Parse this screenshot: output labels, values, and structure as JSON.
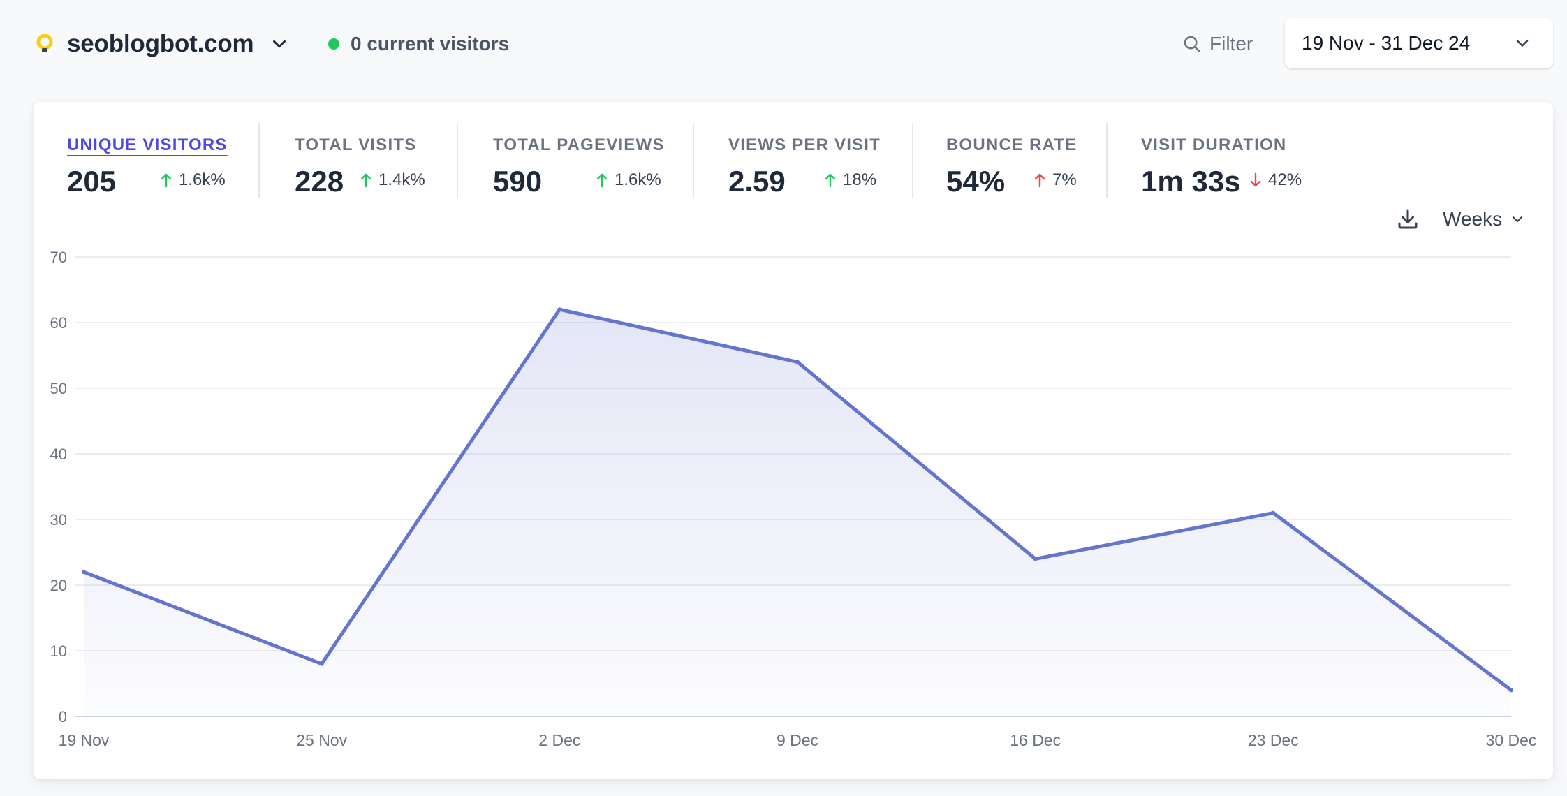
{
  "header": {
    "site_name": "seoblogbot.com",
    "current_visitors": "0 current visitors",
    "filter_label": "Filter",
    "date_range": "19 Nov - 31 Dec 24"
  },
  "metrics": [
    {
      "label": "UNIQUE VISITORS",
      "value": "205",
      "change": "1.6k%",
      "direction": "up",
      "active": true
    },
    {
      "label": "TOTAL VISITS",
      "value": "228",
      "change": "1.4k%",
      "direction": "up",
      "active": false
    },
    {
      "label": "TOTAL PAGEVIEWS",
      "value": "590",
      "change": "1.6k%",
      "direction": "up",
      "active": false
    },
    {
      "label": "VIEWS PER VISIT",
      "value": "2.59",
      "change": "18%",
      "direction": "up",
      "active": false
    },
    {
      "label": "BOUNCE RATE",
      "value": "54%",
      "change": "7%",
      "direction": "up",
      "active": false
    },
    {
      "label": "VISIT DURATION",
      "value": "1m 33s",
      "change": "42%",
      "direction": "down",
      "active": false
    }
  ],
  "chart_controls": {
    "interval": "Weeks",
    "download_icon": "download-icon"
  },
  "colors": {
    "accent": "#4f46e5",
    "line": "#6574cd",
    "up": "#22c55e",
    "up_bad": "#ef4444",
    "down": "#ef4444",
    "live_dot": "#22c55e"
  },
  "chart_data": {
    "type": "area",
    "title": "",
    "xlabel": "",
    "ylabel": "",
    "categories": [
      "19 Nov",
      "25 Nov",
      "2 Dec",
      "9 Dec",
      "16 Dec",
      "23 Dec",
      "30 Dec"
    ],
    "series": [
      {
        "values": [
          22,
          8,
          62,
          54,
          24,
          31,
          4
        ]
      }
    ],
    "yticks": [
      0,
      10,
      20,
      30,
      40,
      50,
      60,
      70
    ],
    "ylim": [
      0,
      70
    ],
    "grid": true,
    "legend": "none"
  }
}
